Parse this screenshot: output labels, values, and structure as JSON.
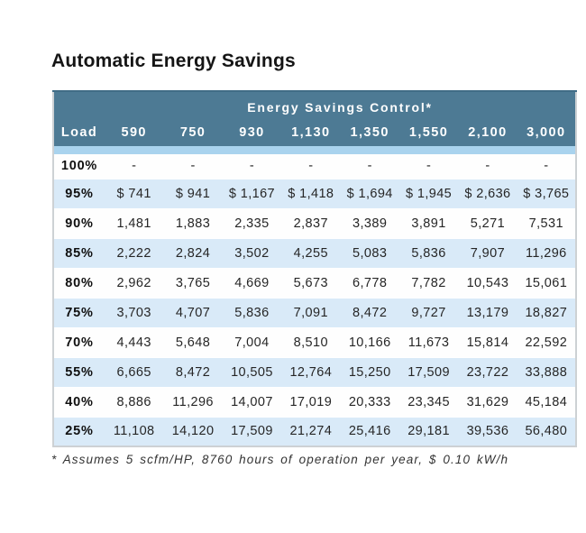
{
  "page": {
    "title": "Automatic Energy Savings",
    "footnote": "* Assumes 5 scfm/HP, 8760 hours of operation per year, $ 0.10 kW/h"
  },
  "table": {
    "header_title": "Energy Savings Control*",
    "load_column_label": "Load",
    "columns": [
      "590",
      "750",
      "930",
      "1,130",
      "1,350",
      "1,550",
      "2,100",
      "3,000"
    ],
    "rows": [
      {
        "load": "100%",
        "values": [
          "-",
          "-",
          "-",
          "-",
          "-",
          "-",
          "-",
          "-"
        ]
      },
      {
        "load": "95%",
        "values": [
          "$ 741",
          "$ 941",
          "$ 1,167",
          "$ 1,418",
          "$ 1,694",
          "$ 1,945",
          "$ 2,636",
          "$ 3,765"
        ]
      },
      {
        "load": "90%",
        "values": [
          "1,481",
          "1,883",
          "2,335",
          "2,837",
          "3,389",
          "3,891",
          "5,271",
          "7,531"
        ]
      },
      {
        "load": "85%",
        "values": [
          "2,222",
          "2,824",
          "3,502",
          "4,255",
          "5,083",
          "5,836",
          "7,907",
          "11,296"
        ]
      },
      {
        "load": "80%",
        "values": [
          "2,962",
          "3,765",
          "4,669",
          "5,673",
          "6,778",
          "7,782",
          "10,543",
          "15,061"
        ]
      },
      {
        "load": "75%",
        "values": [
          "3,703",
          "4,707",
          "5,836",
          "7,091",
          "8,472",
          "9,727",
          "13,179",
          "18,827"
        ]
      },
      {
        "load": "70%",
        "values": [
          "4,443",
          "5,648",
          "7,004",
          "8,510",
          "10,166",
          "11,673",
          "15,814",
          "22,592"
        ]
      },
      {
        "load": "55%",
        "values": [
          "6,665",
          "8,472",
          "10,505",
          "12,764",
          "15,250",
          "17,509",
          "23,722",
          "33,888"
        ]
      },
      {
        "load": "40%",
        "values": [
          "8,886",
          "11,296",
          "14,007",
          "17,019",
          "20,333",
          "23,345",
          "31,629",
          "45,184"
        ]
      },
      {
        "load": "25%",
        "values": [
          "11,108",
          "14,120",
          "17,509",
          "21,274",
          "25,416",
          "29,181",
          "39,536",
          "56,480"
        ]
      }
    ]
  },
  "colors": {
    "header_bg": "#4d7a94",
    "header_top_border": "#406c86",
    "strip_bg": "#a9d3ee",
    "row_alt_bg": "#d9eaf8",
    "outer_border": "#cdd1d4"
  },
  "chart_data": {
    "type": "table",
    "title": "Automatic Energy Savings",
    "subtitle": "Energy Savings Control*",
    "columns": [
      "Load",
      "590",
      "750",
      "930",
      "1,130",
      "1,350",
      "1,550",
      "2,100",
      "3,000"
    ],
    "rows": [
      [
        "100%",
        null,
        null,
        null,
        null,
        null,
        null,
        null,
        null
      ],
      [
        "95%",
        741,
        941,
        1167,
        1418,
        1694,
        1945,
        2636,
        3765
      ],
      [
        "90%",
        1481,
        1883,
        2335,
        2837,
        3389,
        3891,
        5271,
        7531
      ],
      [
        "85%",
        2222,
        2824,
        3502,
        4255,
        5083,
        5836,
        7907,
        11296
      ],
      [
        "80%",
        2962,
        3765,
        4669,
        5673,
        6778,
        7782,
        10543,
        15061
      ],
      [
        "75%",
        3703,
        4707,
        5836,
        7091,
        8472,
        9727,
        13179,
        18827
      ],
      [
        "70%",
        4443,
        5648,
        7004,
        8510,
        10166,
        11673,
        15814,
        22592
      ],
      [
        "55%",
        6665,
        8472,
        10505,
        12764,
        15250,
        17509,
        23722,
        33888
      ],
      [
        "40%",
        8886,
        11296,
        14007,
        17019,
        20333,
        23345,
        31629,
        45184
      ],
      [
        "25%",
        11108,
        14120,
        17509,
        21274,
        25416,
        29181,
        39536,
        56480
      ]
    ],
    "units": "USD per year",
    "footnote": "* Assumes 5 scfm/HP, 8760 hours of operation per year, $ 0.10 kW/h"
  }
}
